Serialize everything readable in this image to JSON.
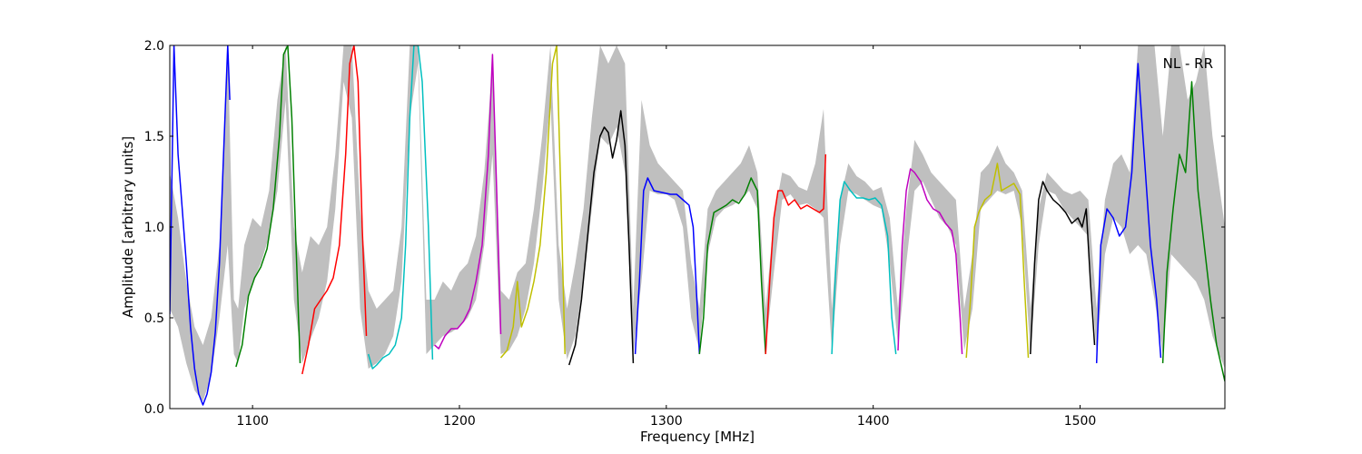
{
  "chart_data": {
    "type": "line",
    "xlabel": "Frequency [MHz]",
    "ylabel": "Amplitude [arbitrary units]",
    "annotation": "NL - RR",
    "xlim": [
      1060,
      1570
    ],
    "ylim": [
      0.0,
      2.0
    ],
    "xticks": [
      {
        "value": 1100,
        "label": "1100"
      },
      {
        "value": 1200,
        "label": "1200"
      },
      {
        "value": 1300,
        "label": "1300"
      },
      {
        "value": 1400,
        "label": "1400"
      },
      {
        "value": 1500,
        "label": "1500"
      }
    ],
    "yticks": [
      {
        "value": 0.0,
        "label": "0.0"
      },
      {
        "value": 0.5,
        "label": "0.5"
      },
      {
        "value": 1.0,
        "label": "1.0"
      },
      {
        "value": 1.5,
        "label": "1.5"
      },
      {
        "value": 2.0,
        "label": "2.0"
      }
    ],
    "grid": false,
    "envelope": {
      "color": "#bfbfbf",
      "x": [
        1060,
        1064,
        1068,
        1072,
        1076,
        1080,
        1084,
        1088,
        1091,
        1093,
        1096,
        1100,
        1104,
        1108,
        1112,
        1116,
        1120,
        1124,
        1128,
        1132,
        1136,
        1140,
        1144,
        1148,
        1152,
        1156,
        1160,
        1164,
        1168,
        1172,
        1176,
        1180,
        1184,
        1188,
        1192,
        1196,
        1200,
        1204,
        1208,
        1212,
        1216,
        1220,
        1224,
        1228,
        1232,
        1236,
        1240,
        1244,
        1248,
        1252,
        1256,
        1260,
        1264,
        1268,
        1272,
        1276,
        1280,
        1284,
        1288,
        1292,
        1296,
        1300,
        1304,
        1308,
        1312,
        1316,
        1320,
        1324,
        1328,
        1332,
        1336,
        1340,
        1344,
        1348,
        1352,
        1356,
        1360,
        1364,
        1368,
        1372,
        1376,
        1380,
        1384,
        1388,
        1392,
        1396,
        1400,
        1404,
        1408,
        1412,
        1416,
        1420,
        1424,
        1428,
        1432,
        1436,
        1440,
        1444,
        1448,
        1452,
        1456,
        1460,
        1464,
        1468,
        1472,
        1476,
        1480,
        1484,
        1488,
        1492,
        1496,
        1500,
        1504,
        1508,
        1512,
        1516,
        1520,
        1524,
        1528,
        1532,
        1536,
        1540,
        1544,
        1548,
        1552,
        1556,
        1560,
        1564,
        1570
      ],
      "lo": [
        0.55,
        0.45,
        0.25,
        0.1,
        0.04,
        0.18,
        0.5,
        0.9,
        0.3,
        0.25,
        0.55,
        0.7,
        0.8,
        0.95,
        1.2,
        1.7,
        0.6,
        0.25,
        0.38,
        0.5,
        0.7,
        1.1,
        1.8,
        1.6,
        0.55,
        0.22,
        0.25,
        0.3,
        0.4,
        0.7,
        1.6,
        1.9,
        0.3,
        0.35,
        0.4,
        0.42,
        0.45,
        0.5,
        0.6,
        0.9,
        1.4,
        0.3,
        0.32,
        0.4,
        0.55,
        0.8,
        1.2,
        1.7,
        0.6,
        0.27,
        0.4,
        0.7,
        1.1,
        1.5,
        1.45,
        1.55,
        1.3,
        0.3,
        0.7,
        1.2,
        1.18,
        1.18,
        1.15,
        1.0,
        0.5,
        0.32,
        0.85,
        1.05,
        1.1,
        1.12,
        1.15,
        1.2,
        1.1,
        0.33,
        0.75,
        1.15,
        1.18,
        1.12,
        1.13,
        1.1,
        1.05,
        0.32,
        0.9,
        1.2,
        1.18,
        1.15,
        1.12,
        1.1,
        0.8,
        0.35,
        0.8,
        1.2,
        1.25,
        1.15,
        1.05,
        1.0,
        0.9,
        0.32,
        0.55,
        1.1,
        1.15,
        1.2,
        1.18,
        1.2,
        1.0,
        0.3,
        0.9,
        1.2,
        1.18,
        1.1,
        1.05,
        1.0,
        0.95,
        0.3,
        0.85,
        1.05,
        1.0,
        0.85,
        0.9,
        0.85,
        0.6,
        0.3,
        0.85,
        0.8,
        0.75,
        0.7,
        0.6,
        0.4,
        0.22
      ],
      "hi": [
        1.3,
        1.05,
        0.7,
        0.45,
        0.35,
        0.5,
        0.9,
        2.0,
        0.6,
        0.55,
        0.9,
        1.05,
        1.0,
        1.2,
        1.7,
        2.0,
        1.0,
        0.75,
        0.95,
        0.9,
        1.0,
        1.4,
        2.0,
        2.0,
        1.1,
        0.65,
        0.55,
        0.6,
        0.65,
        1.0,
        2.0,
        2.0,
        0.6,
        0.6,
        0.7,
        0.65,
        0.75,
        0.8,
        0.95,
        1.3,
        1.9,
        0.65,
        0.6,
        0.75,
        0.8,
        1.1,
        1.5,
        2.0,
        0.9,
        0.55,
        0.8,
        1.1,
        1.6,
        2.0,
        1.9,
        2.0,
        1.9,
        0.55,
        1.7,
        1.45,
        1.35,
        1.3,
        1.25,
        1.2,
        0.8,
        0.55,
        1.1,
        1.2,
        1.25,
        1.3,
        1.35,
        1.45,
        1.3,
        0.55,
        1.05,
        1.3,
        1.28,
        1.22,
        1.2,
        1.35,
        1.65,
        0.55,
        1.15,
        1.35,
        1.28,
        1.25,
        1.2,
        1.22,
        1.05,
        0.55,
        1.1,
        1.48,
        1.4,
        1.3,
        1.25,
        1.2,
        1.15,
        0.55,
        0.85,
        1.3,
        1.35,
        1.45,
        1.35,
        1.3,
        1.2,
        0.55,
        1.1,
        1.3,
        1.25,
        1.2,
        1.18,
        1.2,
        1.15,
        0.55,
        1.15,
        1.35,
        1.4,
        1.3,
        2.0,
        2.0,
        2.0,
        1.5,
        2.0,
        2.0,
        1.7,
        1.8,
        2.0,
        1.5,
        1.0
      ]
    },
    "series": [
      {
        "color": "#0000ff",
        "x": [
          1060,
          1062,
          1064,
          1066,
          1068,
          1070,
          1072,
          1074,
          1076,
          1078,
          1080,
          1082,
          1084,
          1086,
          1088,
          1089
        ],
        "y": [
          0.52,
          2.0,
          1.4,
          1.1,
          0.8,
          0.45,
          0.22,
          0.08,
          0.02,
          0.08,
          0.2,
          0.42,
          0.8,
          1.4,
          2.0,
          1.7
        ]
      },
      {
        "color": "#008000",
        "x": [
          1092,
          1095,
          1098,
          1101,
          1104,
          1107,
          1110,
          1113,
          1115,
          1117,
          1119,
          1121,
          1123
        ],
        "y": [
          0.23,
          0.35,
          0.62,
          0.72,
          0.78,
          0.88,
          1.1,
          1.5,
          1.95,
          2.0,
          1.6,
          0.9,
          0.25
        ]
      },
      {
        "color": "#ff0000",
        "x": [
          1124,
          1127,
          1130,
          1133,
          1136,
          1139,
          1142,
          1145,
          1147,
          1149,
          1151,
          1153,
          1155
        ],
        "y": [
          0.19,
          0.35,
          0.55,
          0.6,
          0.65,
          0.72,
          0.9,
          1.4,
          1.9,
          2.0,
          1.8,
          1.0,
          0.4
        ]
      },
      {
        "color": "#00bfbf",
        "x": [
          1156,
          1158,
          1160,
          1163,
          1166,
          1169,
          1172,
          1174,
          1176,
          1178,
          1180,
          1182,
          1185,
          1187
        ],
        "y": [
          0.3,
          0.22,
          0.24,
          0.28,
          0.3,
          0.35,
          0.5,
          0.9,
          1.6,
          2.0,
          2.0,
          1.8,
          1.0,
          0.27
        ]
      },
      {
        "color": "#bf00bf",
        "x": [
          1188,
          1190,
          1193,
          1196,
          1199,
          1202,
          1205,
          1208,
          1211,
          1214,
          1216,
          1218,
          1220
        ],
        "y": [
          0.35,
          0.33,
          0.4,
          0.44,
          0.44,
          0.48,
          0.55,
          0.7,
          0.9,
          1.4,
          1.95,
          1.2,
          0.41
        ]
      },
      {
        "color": "#bfbf00",
        "x": [
          1220,
          1223,
          1226,
          1228,
          1230,
          1233,
          1236,
          1239,
          1242,
          1245,
          1247,
          1249,
          1251
        ],
        "y": [
          0.28,
          0.32,
          0.45,
          0.7,
          0.45,
          0.55,
          0.7,
          0.9,
          1.3,
          1.9,
          2.0,
          1.2,
          0.3
        ]
      },
      {
        "color": "#000000",
        "x": [
          1253,
          1256,
          1259,
          1262,
          1265,
          1268,
          1270,
          1272,
          1274,
          1276,
          1278,
          1280,
          1282,
          1284
        ],
        "y": [
          0.24,
          0.35,
          0.6,
          0.95,
          1.3,
          1.5,
          1.55,
          1.52,
          1.38,
          1.48,
          1.64,
          1.45,
          0.9,
          0.25
        ]
      },
      {
        "color": "#0000ff",
        "x": [
          1285,
          1287,
          1289,
          1291,
          1294,
          1298,
          1302,
          1305,
          1308,
          1311,
          1313,
          1315,
          1316
        ],
        "y": [
          0.3,
          0.7,
          1.2,
          1.27,
          1.2,
          1.19,
          1.18,
          1.18,
          1.15,
          1.12,
          1.0,
          0.55,
          0.3
        ]
      },
      {
        "color": "#008000",
        "x": [
          1316,
          1318,
          1320,
          1323,
          1326,
          1329,
          1332,
          1335,
          1338,
          1341,
          1344,
          1346,
          1348
        ],
        "y": [
          0.3,
          0.5,
          0.9,
          1.08,
          1.1,
          1.12,
          1.15,
          1.13,
          1.18,
          1.27,
          1.2,
          0.7,
          0.3
        ]
      },
      {
        "color": "#ff0000",
        "x": [
          1348,
          1350,
          1352,
          1354,
          1356,
          1359,
          1362,
          1365,
          1368,
          1371,
          1374,
          1376,
          1377
        ],
        "y": [
          0.3,
          0.7,
          1.05,
          1.2,
          1.2,
          1.12,
          1.15,
          1.1,
          1.12,
          1.1,
          1.08,
          1.1,
          1.4
        ]
      },
      {
        "color": "#00bfbf",
        "x": [
          1380,
          1382,
          1384,
          1386,
          1389,
          1392,
          1395,
          1398,
          1401,
          1404,
          1407,
          1409,
          1411
        ],
        "y": [
          0.3,
          0.8,
          1.15,
          1.25,
          1.2,
          1.16,
          1.16,
          1.15,
          1.16,
          1.12,
          0.95,
          0.5,
          0.3
        ]
      },
      {
        "color": "#bf00bf",
        "x": [
          1412,
          1414,
          1416,
          1418,
          1420,
          1423,
          1426,
          1429,
          1432,
          1435,
          1438,
          1440,
          1442,
          1443
        ],
        "y": [
          0.32,
          0.9,
          1.2,
          1.32,
          1.3,
          1.25,
          1.15,
          1.1,
          1.08,
          1.02,
          0.98,
          0.85,
          0.5,
          0.3
        ]
      },
      {
        "color": "#bfbf00",
        "x": [
          1445,
          1447,
          1449,
          1451,
          1454,
          1457,
          1460,
          1462,
          1465,
          1468,
          1471,
          1473,
          1475
        ],
        "y": [
          0.28,
          0.6,
          1.0,
          1.08,
          1.15,
          1.18,
          1.35,
          1.2,
          1.22,
          1.24,
          1.18,
          0.7,
          0.28
        ]
      },
      {
        "color": "#000000",
        "x": [
          1476,
          1478,
          1480,
          1482,
          1484,
          1487,
          1490,
          1493,
          1496,
          1499,
          1501,
          1503,
          1505,
          1507
        ],
        "y": [
          0.3,
          0.8,
          1.15,
          1.25,
          1.2,
          1.15,
          1.12,
          1.08,
          1.02,
          1.05,
          1.0,
          1.1,
          0.7,
          0.35
        ]
      },
      {
        "color": "#0000ff",
        "x": [
          1508,
          1510,
          1513,
          1516,
          1519,
          1522,
          1525,
          1528,
          1531,
          1534,
          1537,
          1539
        ],
        "y": [
          0.25,
          0.9,
          1.1,
          1.05,
          0.95,
          1.0,
          1.3,
          1.9,
          1.4,
          0.9,
          0.6,
          0.28
        ]
      },
      {
        "color": "#008000",
        "x": [
          1540,
          1542,
          1545,
          1548,
          1551,
          1554,
          1557,
          1560,
          1563,
          1566,
          1570
        ],
        "y": [
          0.25,
          0.75,
          1.1,
          1.4,
          1.3,
          1.8,
          1.2,
          0.9,
          0.6,
          0.35,
          0.15
        ]
      }
    ]
  }
}
